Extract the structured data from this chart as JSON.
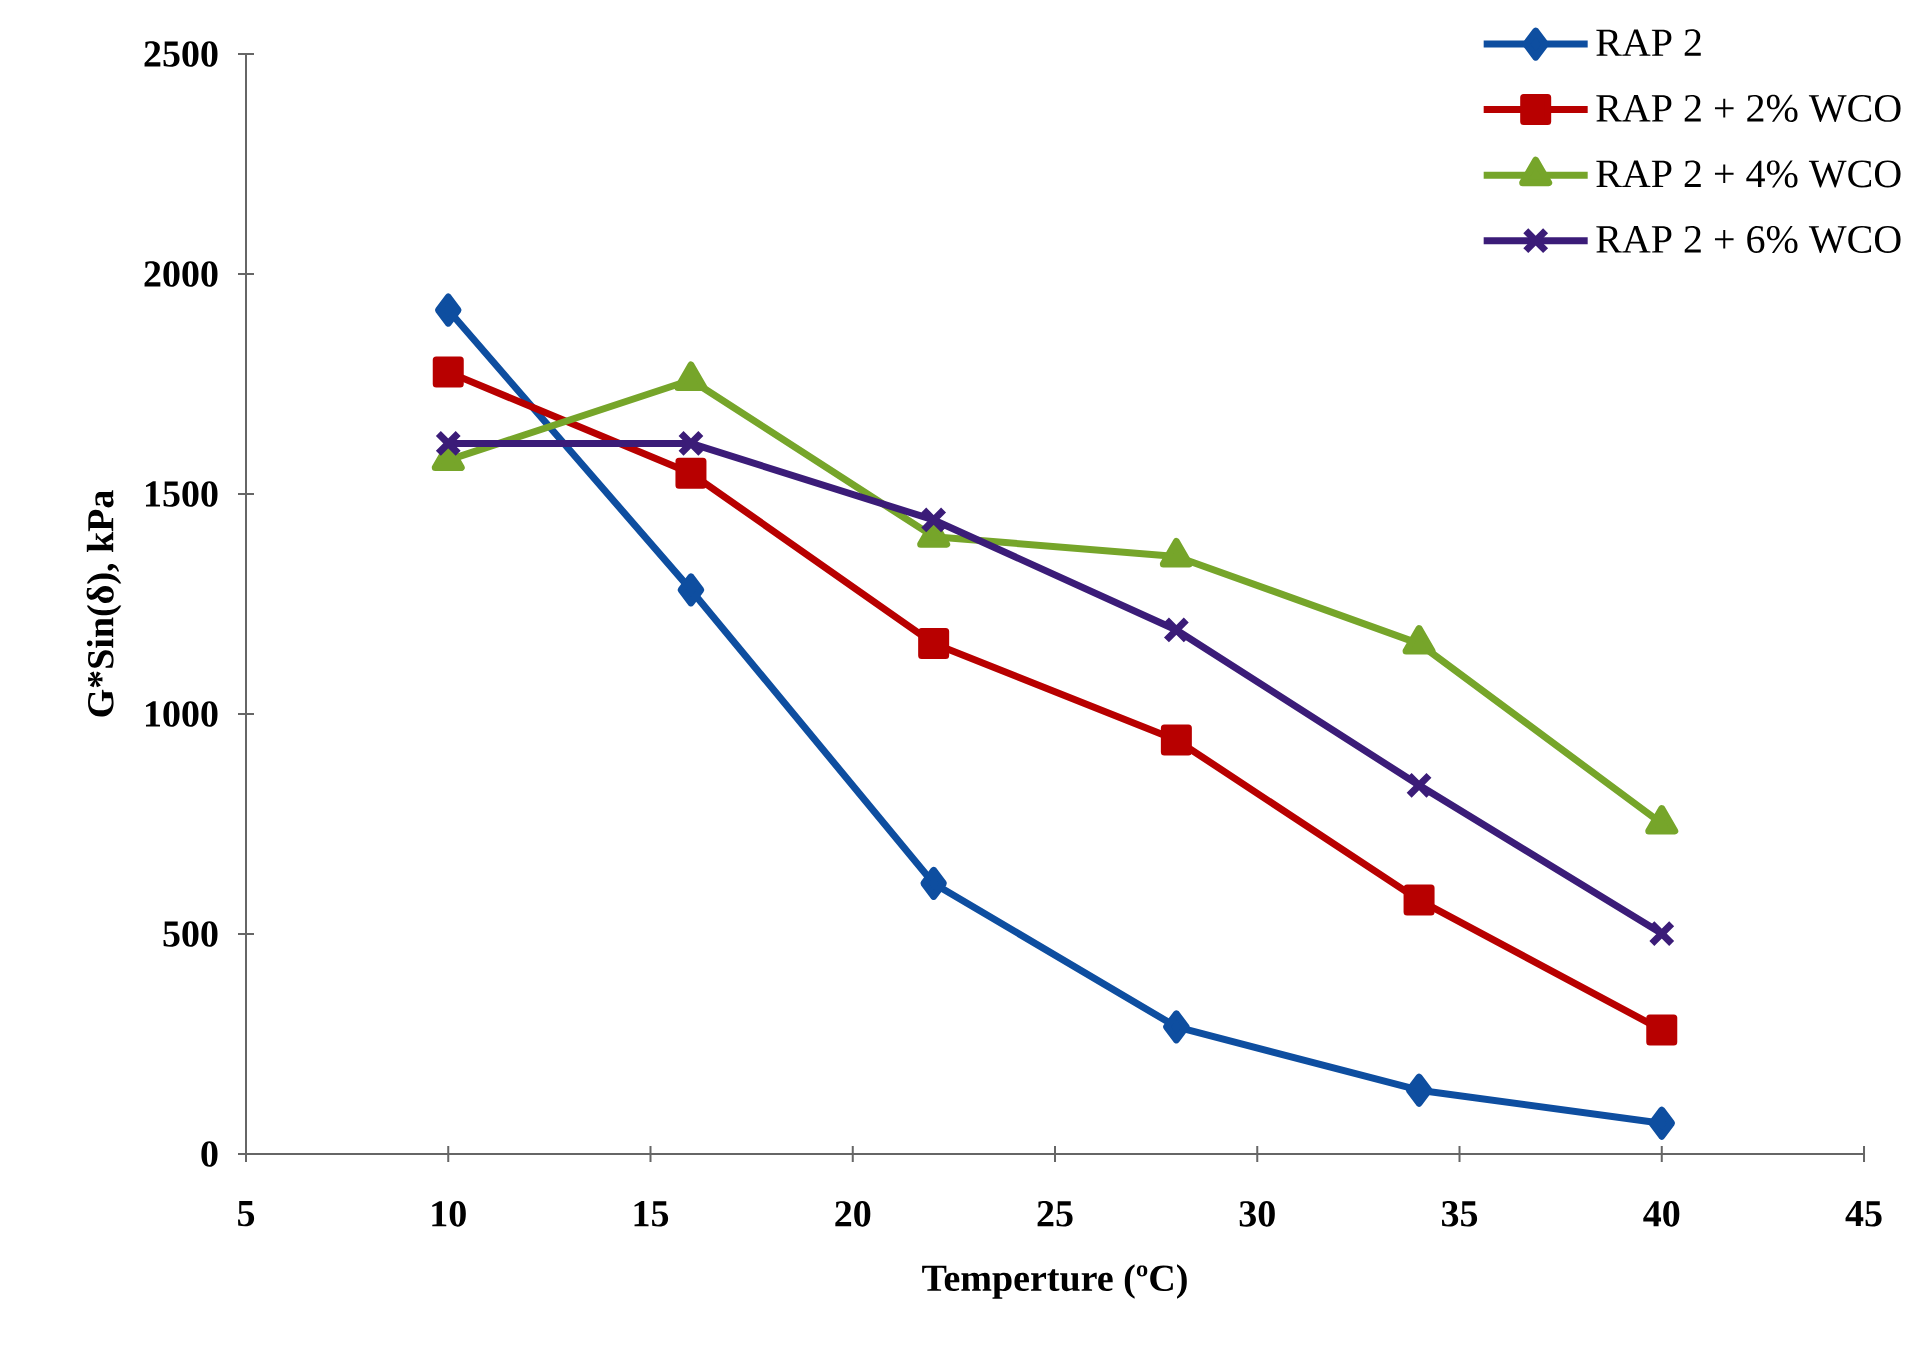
{
  "chart_data": {
    "type": "line",
    "xlabel": "Temperture (ºC)",
    "ylabel": "G*Sin(δ),  kPa",
    "x": [
      10,
      16,
      22,
      28,
      34,
      40
    ],
    "series": [
      {
        "name": "RAP 2",
        "color": "#0e4ea0",
        "marker": "diamond",
        "values": [
          1918,
          1282,
          615,
          289,
          145,
          70
        ]
      },
      {
        "name": "RAP 2 + 2% WCO",
        "color": "#b80000",
        "marker": "square",
        "values": [
          1777,
          1547,
          1160,
          941,
          577,
          282
        ]
      },
      {
        "name": "RAP 2 + 4% WCO",
        "color": "#76a52a",
        "marker": "triangle",
        "values": [
          1577,
          1759,
          1403,
          1358,
          1160,
          751
        ]
      },
      {
        "name": "RAP 2 + 6% WCO",
        "color": "#3b1c78",
        "marker": "cross",
        "values": [
          1615,
          1615,
          1441,
          1191,
          838,
          501
        ]
      }
    ],
    "xlim": [
      5,
      45
    ],
    "ylim": [
      0,
      2500
    ],
    "xticks": [
      5,
      10,
      15,
      20,
      25,
      30,
      35,
      40,
      45
    ],
    "yticks": [
      0,
      500,
      1000,
      1500,
      2000,
      2500
    ],
    "grid": false,
    "legend": "top right",
    "line_style": "solid"
  }
}
